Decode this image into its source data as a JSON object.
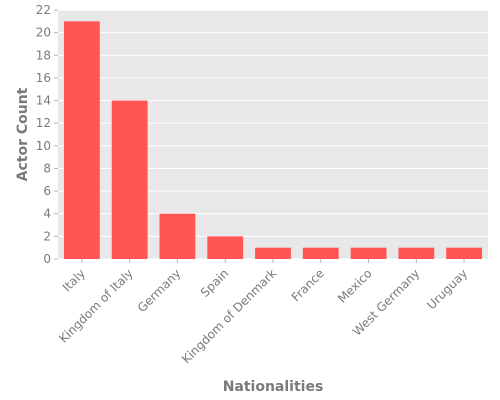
{
  "chart_data": {
    "type": "bar",
    "categories": [
      "Italy",
      "Kingdom of Italy",
      "Germany",
      "Spain",
      "Kingdom of Denmark",
      "France",
      "Mexico",
      "West Germany",
      "Uruguay"
    ],
    "values": [
      21,
      14,
      4,
      2,
      1,
      1,
      1,
      1,
      1
    ],
    "xlabel": "Nationalities",
    "ylabel": "Actor Count",
    "ylim": [
      0,
      22
    ],
    "yticks": [
      0,
      2,
      4,
      6,
      8,
      10,
      12,
      14,
      16,
      18,
      20,
      22
    ],
    "grid": true,
    "legend": "none",
    "bar_color": "#ff5555",
    "plot_background": "#e8e8e8",
    "grid_color": "#ffffff"
  }
}
